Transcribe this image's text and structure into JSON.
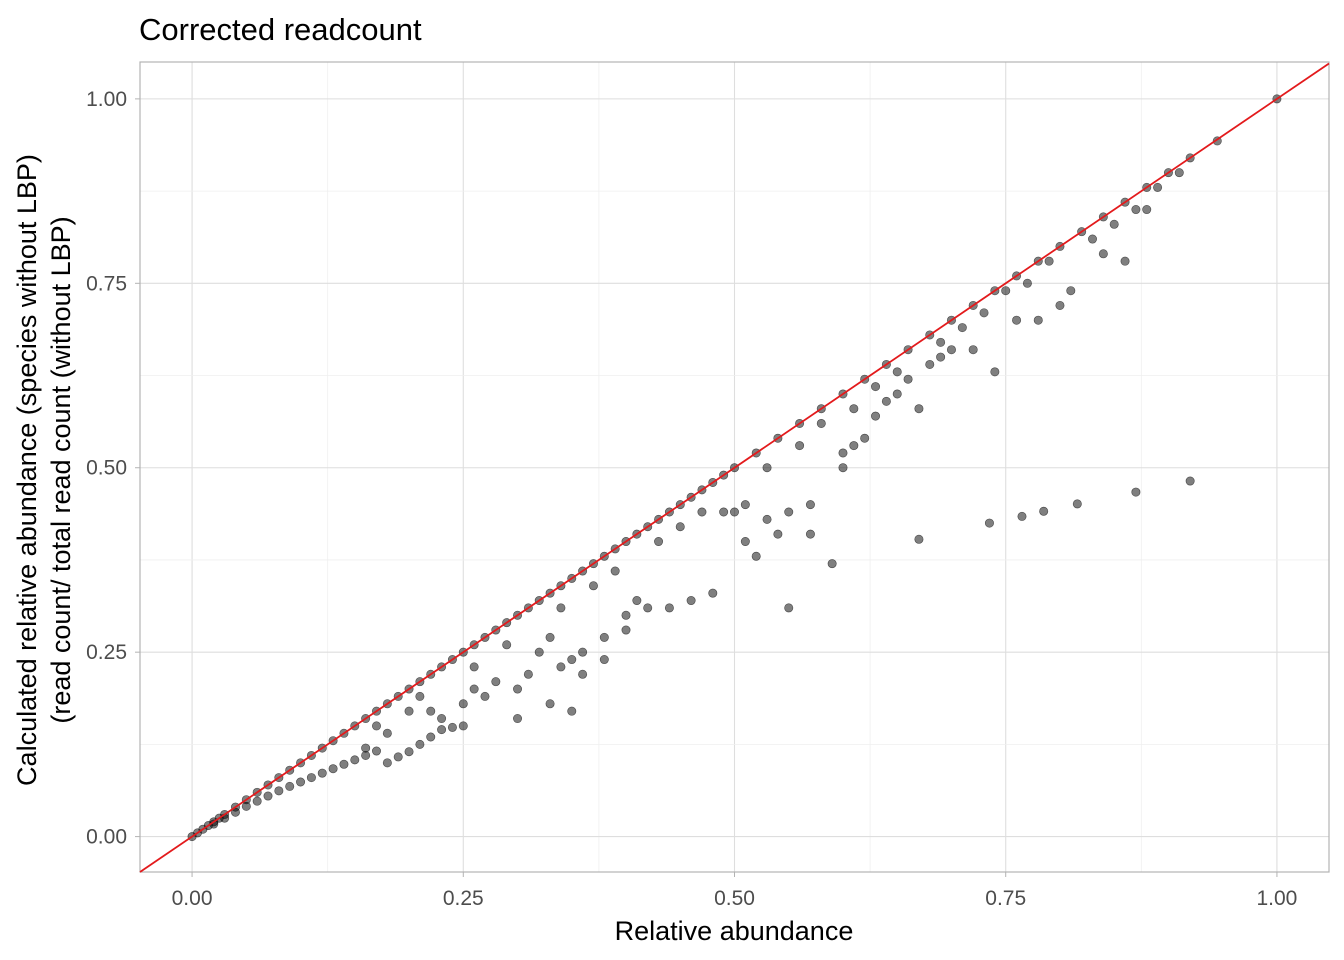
{
  "chart_data": {
    "type": "scatter",
    "title": "Corrected readcount",
    "xlabel": "Relative abundance",
    "ylabel_lines": [
      "Calculated relative abundance (species without LBP)",
      "(read count/ total read count (without LBP)"
    ],
    "xlim": [
      -0.048,
      1.048
    ],
    "ylim": [
      -0.048,
      1.05
    ],
    "x_ticks": [
      0.0,
      0.25,
      0.5,
      0.75,
      1.0
    ],
    "x_tick_labels": [
      "0.00",
      "0.25",
      "0.50",
      "0.75",
      "1.00"
    ],
    "y_ticks": [
      0.0,
      0.25,
      0.5,
      0.75,
      1.0
    ],
    "y_tick_labels": [
      "0.00",
      "0.25",
      "0.50",
      "0.75",
      "1.00"
    ],
    "grid": true,
    "reference_line": {
      "type": "identity",
      "slope": 1,
      "intercept": 0,
      "color": "#e31a1c"
    },
    "point_color": "#000000",
    "point_opacity": 0.5,
    "points": [
      [
        0.0,
        0.0
      ],
      [
        0.005,
        0.005
      ],
      [
        0.01,
        0.01
      ],
      [
        0.015,
        0.015
      ],
      [
        0.02,
        0.02
      ],
      [
        0.025,
        0.025
      ],
      [
        0.03,
        0.03
      ],
      [
        0.04,
        0.04
      ],
      [
        0.05,
        0.05
      ],
      [
        0.06,
        0.06
      ],
      [
        0.07,
        0.07
      ],
      [
        0.08,
        0.08
      ],
      [
        0.09,
        0.09
      ],
      [
        0.1,
        0.1
      ],
      [
        0.11,
        0.11
      ],
      [
        0.12,
        0.12
      ],
      [
        0.13,
        0.13
      ],
      [
        0.14,
        0.14
      ],
      [
        0.15,
        0.15
      ],
      [
        0.16,
        0.16
      ],
      [
        0.17,
        0.17
      ],
      [
        0.18,
        0.18
      ],
      [
        0.19,
        0.19
      ],
      [
        0.2,
        0.2
      ],
      [
        0.21,
        0.21
      ],
      [
        0.22,
        0.22
      ],
      [
        0.23,
        0.23
      ],
      [
        0.24,
        0.24
      ],
      [
        0.25,
        0.25
      ],
      [
        0.26,
        0.26
      ],
      [
        0.27,
        0.27
      ],
      [
        0.28,
        0.28
      ],
      [
        0.29,
        0.29
      ],
      [
        0.3,
        0.3
      ],
      [
        0.31,
        0.31
      ],
      [
        0.32,
        0.32
      ],
      [
        0.33,
        0.33
      ],
      [
        0.34,
        0.34
      ],
      [
        0.35,
        0.35
      ],
      [
        0.36,
        0.36
      ],
      [
        0.37,
        0.37
      ],
      [
        0.38,
        0.38
      ],
      [
        0.39,
        0.39
      ],
      [
        0.4,
        0.4
      ],
      [
        0.41,
        0.41
      ],
      [
        0.42,
        0.42
      ],
      [
        0.43,
        0.43
      ],
      [
        0.44,
        0.44
      ],
      [
        0.45,
        0.45
      ],
      [
        0.46,
        0.46
      ],
      [
        0.47,
        0.47
      ],
      [
        0.48,
        0.48
      ],
      [
        0.49,
        0.49
      ],
      [
        0.5,
        0.5
      ],
      [
        0.52,
        0.52
      ],
      [
        0.54,
        0.54
      ],
      [
        0.56,
        0.56
      ],
      [
        0.58,
        0.58
      ],
      [
        0.6,
        0.6
      ],
      [
        0.62,
        0.62
      ],
      [
        0.64,
        0.64
      ],
      [
        0.66,
        0.66
      ],
      [
        0.68,
        0.68
      ],
      [
        0.7,
        0.7
      ],
      [
        0.72,
        0.72
      ],
      [
        0.74,
        0.74
      ],
      [
        0.76,
        0.76
      ],
      [
        0.78,
        0.78
      ],
      [
        0.8,
        0.8
      ],
      [
        0.82,
        0.82
      ],
      [
        0.84,
        0.84
      ],
      [
        0.86,
        0.86
      ],
      [
        0.88,
        0.88
      ],
      [
        0.9,
        0.9
      ],
      [
        0.92,
        0.92
      ],
      [
        0.945,
        0.943
      ],
      [
        1.0,
        1.0
      ],
      [
        0.02,
        0.017
      ],
      [
        0.03,
        0.025
      ],
      [
        0.04,
        0.033
      ],
      [
        0.05,
        0.041
      ],
      [
        0.06,
        0.048
      ],
      [
        0.07,
        0.055
      ],
      [
        0.08,
        0.062
      ],
      [
        0.09,
        0.068
      ],
      [
        0.1,
        0.074
      ],
      [
        0.11,
        0.08
      ],
      [
        0.12,
        0.086
      ],
      [
        0.13,
        0.092
      ],
      [
        0.14,
        0.098
      ],
      [
        0.15,
        0.104
      ],
      [
        0.16,
        0.11
      ],
      [
        0.17,
        0.116
      ],
      [
        0.18,
        0.1
      ],
      [
        0.19,
        0.108
      ],
      [
        0.2,
        0.115
      ],
      [
        0.21,
        0.125
      ],
      [
        0.22,
        0.135
      ],
      [
        0.23,
        0.145
      ],
      [
        0.24,
        0.148
      ],
      [
        0.17,
        0.15
      ],
      [
        0.2,
        0.17
      ],
      [
        0.21,
        0.19
      ],
      [
        0.26,
        0.2
      ],
      [
        0.27,
        0.19
      ],
      [
        0.28,
        0.21
      ],
      [
        0.25,
        0.18
      ],
      [
        0.3,
        0.2
      ],
      [
        0.31,
        0.22
      ],
      [
        0.32,
        0.25
      ],
      [
        0.33,
        0.27
      ],
      [
        0.35,
        0.17
      ],
      [
        0.36,
        0.25
      ],
      [
        0.38,
        0.27
      ],
      [
        0.4,
        0.3
      ],
      [
        0.41,
        0.32
      ],
      [
        0.42,
        0.31
      ],
      [
        0.44,
        0.31
      ],
      [
        0.46,
        0.32
      ],
      [
        0.48,
        0.33
      ],
      [
        0.5,
        0.44
      ],
      [
        0.51,
        0.4
      ],
      [
        0.52,
        0.38
      ],
      [
        0.54,
        0.41
      ],
      [
        0.55,
        0.31
      ],
      [
        0.57,
        0.41
      ],
      [
        0.59,
        0.37
      ],
      [
        0.6,
        0.52
      ],
      [
        0.62,
        0.54
      ],
      [
        0.64,
        0.59
      ],
      [
        0.66,
        0.62
      ],
      [
        0.67,
        0.58
      ],
      [
        0.68,
        0.64
      ],
      [
        0.7,
        0.66
      ],
      [
        0.72,
        0.66
      ],
      [
        0.74,
        0.63
      ],
      [
        0.76,
        0.7
      ],
      [
        0.78,
        0.7
      ],
      [
        0.8,
        0.72
      ],
      [
        0.81,
        0.74
      ],
      [
        0.84,
        0.79
      ],
      [
        0.86,
        0.78
      ],
      [
        0.88,
        0.85
      ],
      [
        0.67,
        0.403
      ],
      [
        0.735,
        0.425
      ],
      [
        0.765,
        0.434
      ],
      [
        0.785,
        0.441
      ],
      [
        0.816,
        0.451
      ],
      [
        0.87,
        0.467
      ],
      [
        0.92,
        0.482
      ],
      [
        0.3,
        0.16
      ],
      [
        0.33,
        0.18
      ],
      [
        0.25,
        0.15
      ],
      [
        0.22,
        0.17
      ],
      [
        0.23,
        0.16
      ],
      [
        0.18,
        0.14
      ],
      [
        0.16,
        0.12
      ],
      [
        0.26,
        0.23
      ],
      [
        0.29,
        0.26
      ],
      [
        0.34,
        0.31
      ],
      [
        0.37,
        0.34
      ],
      [
        0.39,
        0.36
      ],
      [
        0.43,
        0.4
      ],
      [
        0.45,
        0.42
      ],
      [
        0.47,
        0.44
      ],
      [
        0.53,
        0.5
      ],
      [
        0.56,
        0.53
      ],
      [
        0.58,
        0.56
      ],
      [
        0.61,
        0.58
      ],
      [
        0.63,
        0.61
      ],
      [
        0.65,
        0.63
      ],
      [
        0.69,
        0.67
      ],
      [
        0.71,
        0.69
      ],
      [
        0.73,
        0.71
      ],
      [
        0.75,
        0.74
      ],
      [
        0.77,
        0.75
      ],
      [
        0.79,
        0.78
      ],
      [
        0.83,
        0.81
      ],
      [
        0.85,
        0.83
      ],
      [
        0.87,
        0.85
      ],
      [
        0.89,
        0.88
      ],
      [
        0.91,
        0.9
      ],
      [
        0.35,
        0.24
      ],
      [
        0.34,
        0.23
      ],
      [
        0.36,
        0.22
      ],
      [
        0.38,
        0.24
      ],
      [
        0.4,
        0.28
      ],
      [
        0.49,
        0.44
      ],
      [
        0.51,
        0.45
      ],
      [
        0.53,
        0.43
      ],
      [
        0.55,
        0.44
      ],
      [
        0.57,
        0.45
      ],
      [
        0.6,
        0.5
      ],
      [
        0.61,
        0.53
      ],
      [
        0.63,
        0.57
      ],
      [
        0.65,
        0.6
      ],
      [
        0.69,
        0.65
      ]
    ]
  }
}
